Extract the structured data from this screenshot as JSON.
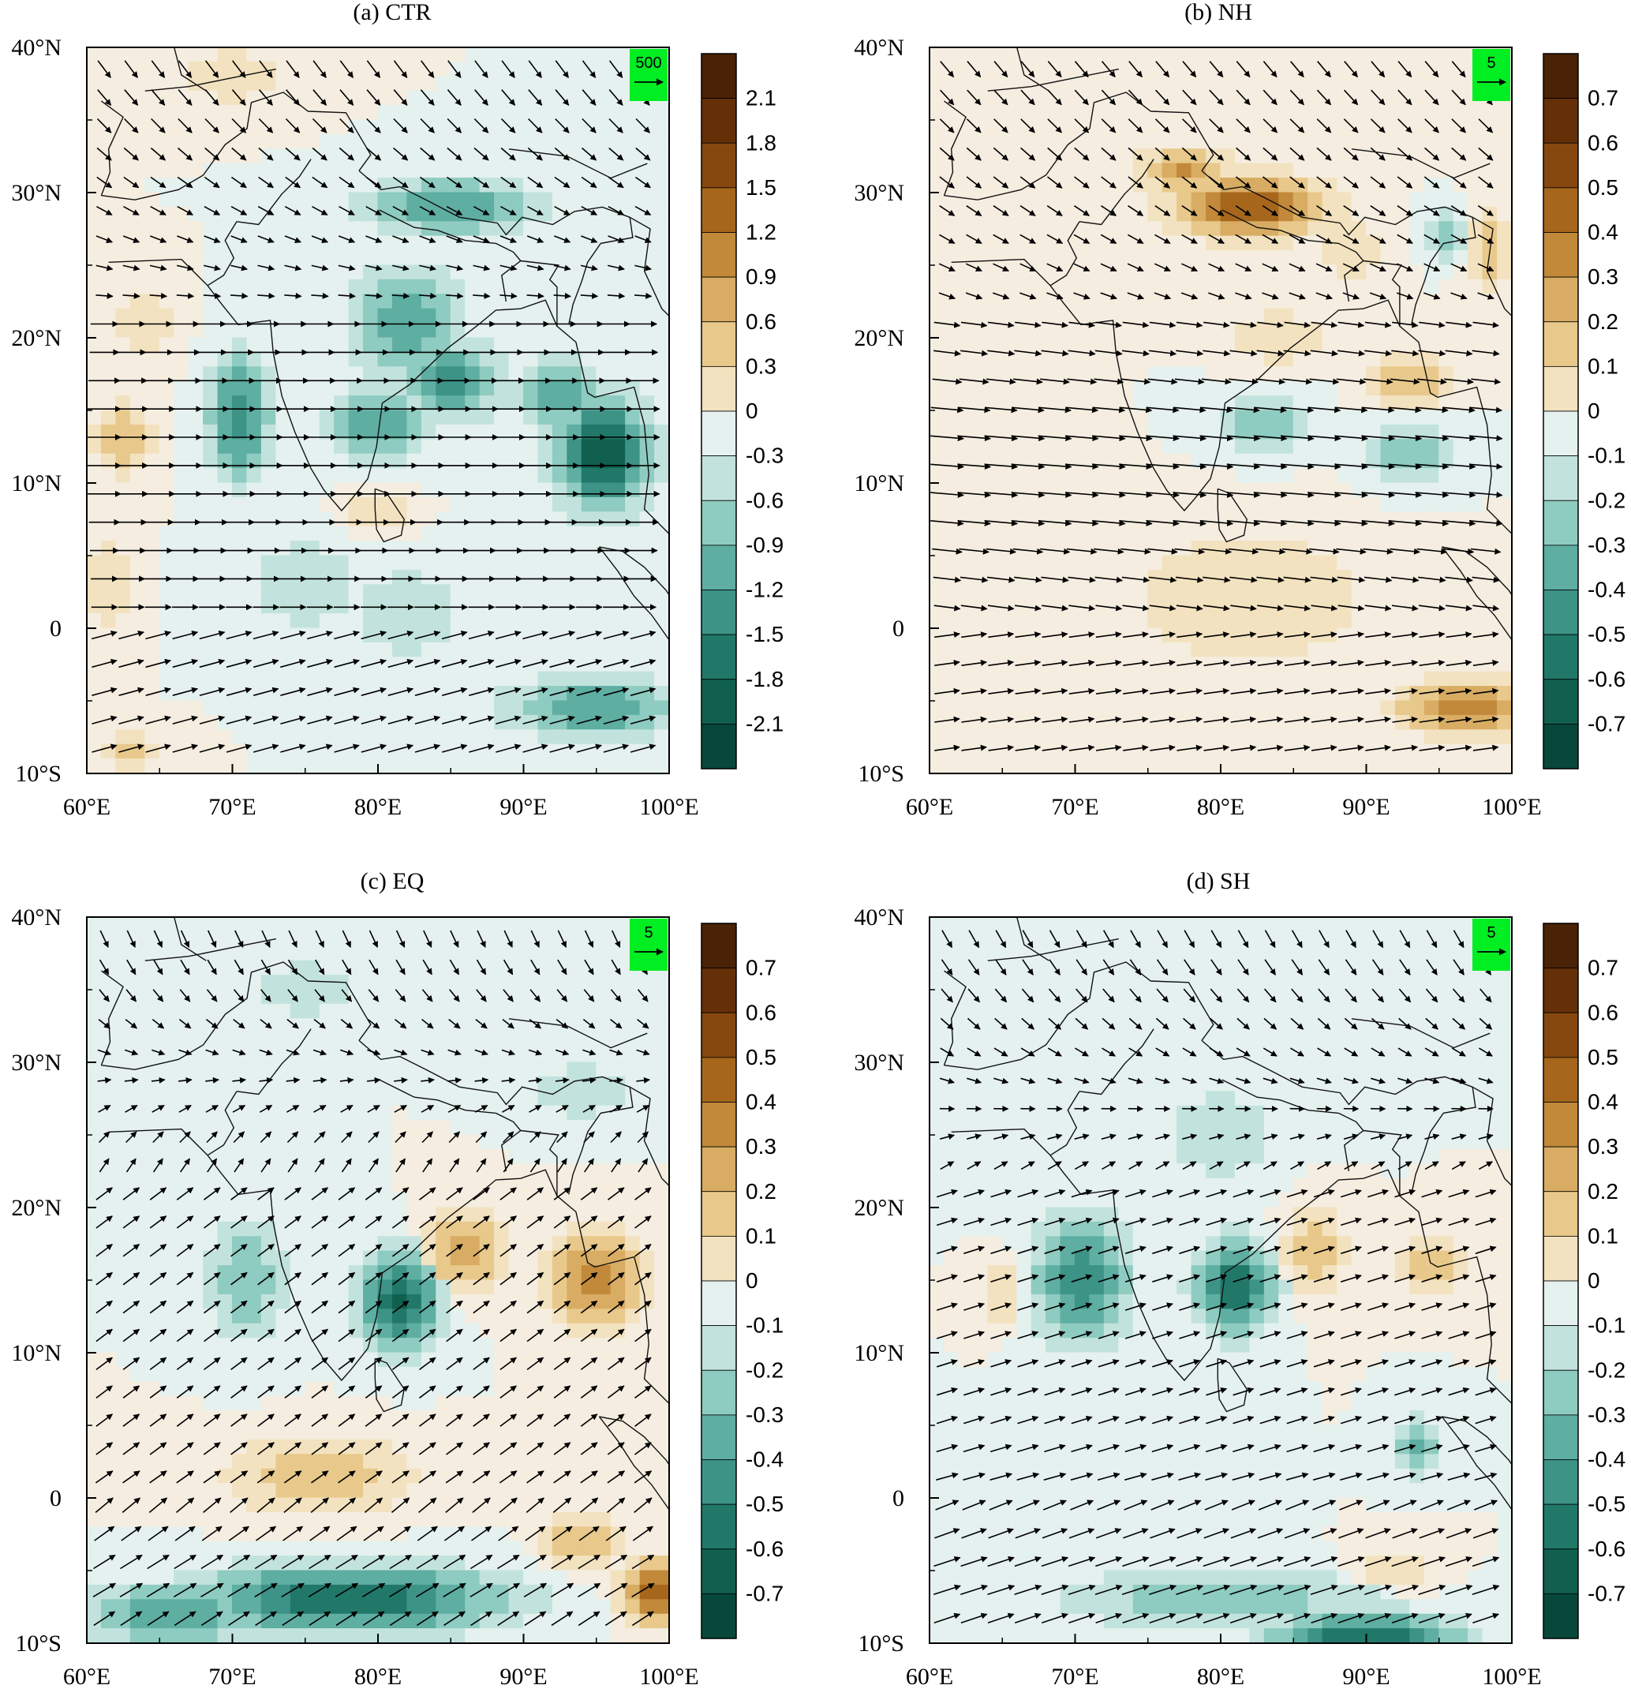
{
  "figure": {
    "lon_ticks": [
      "60°E",
      "70°E",
      "80°E",
      "90°E",
      "100°E"
    ],
    "lat_ticks": [
      "40°N",
      "30°N",
      "20°N",
      "10°N",
      "0",
      "10°S"
    ],
    "colors_positive": [
      "#f5ede0",
      "#f3e2bf",
      "#e8c98b",
      "#d8ac63",
      "#c2893b",
      "#a6671c",
      "#86480f",
      "#653008",
      "#4a2206"
    ],
    "colors_negative": [
      "#e4f1ef",
      "#c2e3dd",
      "#8ecbc0",
      "#5eaea2",
      "#3c9386",
      "#217869",
      "#11604f",
      "#08483a",
      "#043329"
    ],
    "reference_vector_color": "#00ee22"
  },
  "panels": [
    {
      "title": "(a) CTR",
      "ref_vector_label": "500",
      "colorbar_labels": [
        "2.1",
        "1.8",
        "1.5",
        "1.2",
        "0.9",
        "0.6",
        "0.3",
        "0",
        "-0.3",
        "-0.6",
        "-0.9",
        "-1.2",
        "-1.5",
        "-1.8",
        "-2.1"
      ],
      "field": [
        {
          "lon": 70.5,
          "lat": 14.5,
          "value": -1.5,
          "rlon": 2.0,
          "rlat": 4.0
        },
        {
          "lon": 82,
          "lat": 21,
          "value": -1.2,
          "rlon": 3.5,
          "rlat": 3.5
        },
        {
          "lon": 85,
          "lat": 17,
          "value": -1.5,
          "rlon": 3.0,
          "rlat": 2.5
        },
        {
          "lon": 80,
          "lat": 14,
          "value": -1.2,
          "rlon": 3.0,
          "rlat": 2.5
        },
        {
          "lon": 92.5,
          "lat": 16,
          "value": -1.2,
          "rlon": 2.5,
          "rlat": 2.5
        },
        {
          "lon": 95.5,
          "lat": 12,
          "value": -2.1,
          "rlon": 3.0,
          "rlat": 3.5
        },
        {
          "lon": 85,
          "lat": 29,
          "value": -1.2,
          "rlon": 5.5,
          "rlat": 1.8
        },
        {
          "lon": 95,
          "lat": -5.5,
          "value": -1.2,
          "rlon": 6.0,
          "rlat": 2.0
        },
        {
          "lon": 82,
          "lat": 1,
          "value": -0.6,
          "rlon": 4.0,
          "rlat": 3.0
        },
        {
          "lon": 75,
          "lat": 3,
          "value": -0.6,
          "rlon": 4.0,
          "rlat": 3.0
        },
        {
          "lon": 62.5,
          "lat": 13,
          "value": 0.9,
          "rlon": 2.0,
          "rlat": 2.5
        },
        {
          "lon": 64,
          "lat": 21,
          "value": 0.6,
          "rlon": 2.0,
          "rlat": 2.5
        },
        {
          "lon": 80,
          "lat": 8,
          "value": 0.6,
          "rlon": 2.0,
          "rlat": 1.5
        },
        {
          "lon": 63,
          "lat": -8.5,
          "value": 0.9,
          "rlon": 2.0,
          "rlat": 1.2
        },
        {
          "lon": 70,
          "lat": 38,
          "value": 0.6,
          "rlon": 3.0,
          "rlat": 2.0
        },
        {
          "lon": 61.5,
          "lat": 3,
          "value": 0.6,
          "rlon": 1.5,
          "rlat": 3.0
        }
      ],
      "wind": {
        "vx": 2.2,
        "vy": 0.0,
        "scale": 10,
        "jet": {
          "lat": 12.5,
          "width": 7,
          "speed": 1.4
        },
        "north_turn": -0.9
      }
    },
    {
      "title": "(b) NH",
      "ref_vector_label": "5",
      "colorbar_labels": [
        "0.7",
        "0.6",
        "0.5",
        "0.4",
        "0.3",
        "0.2",
        "0.1",
        "0",
        "-0.1",
        "-0.2",
        "-0.3",
        "-0.4",
        "-0.5",
        "-0.6",
        "-0.7"
      ],
      "field": [
        {
          "lon": 82,
          "lat": 29,
          "value": 0.6,
          "rlon": 5.0,
          "rlat": 2.0
        },
        {
          "lon": 77.5,
          "lat": 31.5,
          "value": 0.4,
          "rlon": 3.0,
          "rlat": 1.5
        },
        {
          "lon": 89,
          "lat": 26,
          "value": 0.2,
          "rlon": 2.5,
          "rlat": 2.0
        },
        {
          "lon": 97,
          "lat": -5.5,
          "value": 0.5,
          "rlon": 4.5,
          "rlat": 1.8
        },
        {
          "lon": 82,
          "lat": 2,
          "value": 0.2,
          "rlon": 8.0,
          "rlat": 5.0
        },
        {
          "lon": 98.5,
          "lat": 26,
          "value": 0.3,
          "rlon": 1.5,
          "rlat": 2.5
        },
        {
          "lon": 93,
          "lat": 17,
          "value": 0.3,
          "rlon": 2.5,
          "rlat": 2.0
        },
        {
          "lon": 84,
          "lat": 20,
          "value": 0.2,
          "rlon": 3.0,
          "rlat": 2.0
        },
        {
          "lon": 83,
          "lat": 14,
          "value": -0.3,
          "rlon": 3.0,
          "rlat": 2.0
        },
        {
          "lon": 93,
          "lat": 12,
          "value": -0.3,
          "rlon": 3.0,
          "rlat": 2.0
        },
        {
          "lon": 95.5,
          "lat": 27,
          "value": -0.3,
          "rlon": 1.5,
          "rlat": 1.5
        },
        {
          "lon": 64,
          "lat": 20,
          "value": 0.1,
          "rlon": 3.0,
          "rlat": 3.0
        }
      ],
      "wind": {
        "vx": 2.2,
        "vy": -0.3,
        "scale": 1.0,
        "jet": {
          "lat": 11,
          "width": 6,
          "speed": 1.6
        },
        "north_turn": -0.6
      }
    },
    {
      "title": "(c) EQ",
      "ref_vector_label": "5",
      "colorbar_labels": [
        "0.7",
        "0.6",
        "0.5",
        "0.4",
        "0.3",
        "0.2",
        "0.1",
        "0",
        "-0.1",
        "-0.2",
        "-0.3",
        "-0.4",
        "-0.5",
        "-0.6",
        "-0.7"
      ],
      "field": [
        {
          "lon": 78,
          "lat": -7,
          "value": -0.6,
          "rlon": 10.0,
          "rlat": 2.2
        },
        {
          "lon": 66,
          "lat": -8,
          "value": -0.4,
          "rlon": 6.0,
          "rlat": 2.0
        },
        {
          "lon": 81.5,
          "lat": 13.5,
          "value": -0.6,
          "rlon": 2.5,
          "rlat": 3.0
        },
        {
          "lon": 71,
          "lat": 15,
          "value": -0.3,
          "rlon": 2.5,
          "rlat": 4.0
        },
        {
          "lon": 86,
          "lat": 17,
          "value": 0.4,
          "rlon": 2.5,
          "rlat": 2.5
        },
        {
          "lon": 95,
          "lat": 15,
          "value": 0.5,
          "rlon": 3.0,
          "rlat": 3.0
        },
        {
          "lon": 76,
          "lat": 1.5,
          "value": 0.3,
          "rlon": 6.0,
          "rlat": 2.5
        },
        {
          "lon": 99,
          "lat": -6.5,
          "value": 0.6,
          "rlon": 2.0,
          "rlat": 2.0
        },
        {
          "lon": 94,
          "lat": -3,
          "value": 0.3,
          "rlon": 2.5,
          "rlat": 2.0
        },
        {
          "lon": 75,
          "lat": 35,
          "value": -0.2,
          "rlon": 3.0,
          "rlat": 2.0
        },
        {
          "lon": 94,
          "lat": 28,
          "value": -0.2,
          "rlon": 3.0,
          "rlat": 2.0
        },
        {
          "lon": 65,
          "lat": 24,
          "value": -0.1,
          "rlon": 3.0,
          "rlat": 3.0
        }
      ],
      "wind": {
        "vx": 1.2,
        "vy": 0.9,
        "scale": 1.0,
        "jet": {
          "lat": -6,
          "width": 5,
          "speed": 0.8
        },
        "north_turn": -1.4
      }
    },
    {
      "title": "(d) SH",
      "ref_vector_label": "5",
      "colorbar_labels": [
        "0.7",
        "0.6",
        "0.5",
        "0.4",
        "0.3",
        "0.2",
        "0.1",
        "0",
        "-0.1",
        "-0.2",
        "-0.3",
        "-0.4",
        "-0.5",
        "-0.6",
        "-0.7"
      ],
      "field": [
        {
          "lon": 70.5,
          "lat": 15,
          "value": -0.5,
          "rlon": 3.0,
          "rlat": 4.0
        },
        {
          "lon": 81,
          "lat": 14.5,
          "value": -0.6,
          "rlon": 2.5,
          "rlat": 3.0
        },
        {
          "lon": 90,
          "lat": -9.5,
          "value": -0.6,
          "rlon": 6.0,
          "rlat": 1.5
        },
        {
          "lon": 80,
          "lat": -7,
          "value": -0.3,
          "rlon": 10.0,
          "rlat": 2.0
        },
        {
          "lon": 93.5,
          "lat": 3.5,
          "value": -0.3,
          "rlon": 1.5,
          "rlat": 2.0
        },
        {
          "lon": 86.5,
          "lat": 17,
          "value": 0.3,
          "rlon": 2.0,
          "rlat": 3.0
        },
        {
          "lon": 94.5,
          "lat": 16,
          "value": 0.3,
          "rlon": 2.0,
          "rlat": 2.0
        },
        {
          "lon": 65,
          "lat": 14,
          "value": 0.2,
          "rlon": 1.5,
          "rlat": 2.0
        },
        {
          "lon": 80,
          "lat": 25,
          "value": -0.2,
          "rlon": 4.0,
          "rlat": 3.0
        },
        {
          "lon": 92,
          "lat": -5,
          "value": 0.2,
          "rlon": 3.0,
          "rlat": 1.5
        }
      ],
      "wind": {
        "vx": 1.6,
        "vy": 0.5,
        "scale": 1.0,
        "jet": {
          "lat": -6,
          "width": 6,
          "speed": 0.9
        },
        "north_turn": -1.2
      }
    }
  ]
}
